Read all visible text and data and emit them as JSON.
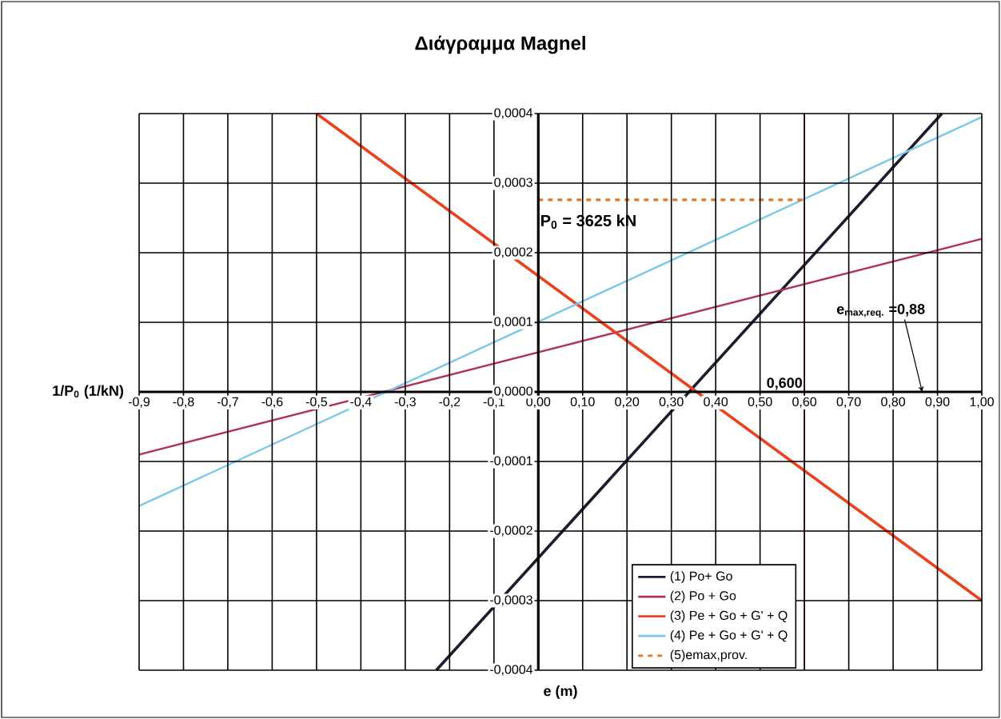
{
  "chart_data": {
    "type": "line",
    "title": "Διάγραμμα Magnel",
    "xlabel": "e (m)",
    "ylabel": "1/P$_{0}$ (1/kN)",
    "xlim": [
      -0.9,
      1.0
    ],
    "ylim": [
      -0.0004,
      0.0004
    ],
    "xticks": [
      {
        "value": -0.9,
        "label": "-0,9"
      },
      {
        "value": -0.8,
        "label": "-0,8"
      },
      {
        "value": -0.7,
        "label": "-0,7"
      },
      {
        "value": -0.6,
        "label": "-0,6"
      },
      {
        "value": -0.5,
        "label": "-0,5"
      },
      {
        "value": -0.4,
        "label": "-0,4"
      },
      {
        "value": -0.3,
        "label": "-0,3"
      },
      {
        "value": -0.2,
        "label": "-0,2"
      },
      {
        "value": -0.1,
        "label": "-0,1"
      },
      {
        "value": 0,
        "label": "0,00"
      },
      {
        "value": 0.1,
        "label": "0,10"
      },
      {
        "value": 0.2,
        "label": "0,20"
      },
      {
        "value": 0.3,
        "label": "0,30"
      },
      {
        "value": 0.4,
        "label": "0,40"
      },
      {
        "value": 0.5,
        "label": "0,50"
      },
      {
        "value": 0.6,
        "label": "0,60"
      },
      {
        "value": 0.7,
        "label": "0,70"
      },
      {
        "value": 0.8,
        "label": "0,80"
      },
      {
        "value": 0.9,
        "label": "0,90"
      },
      {
        "value": 1.0,
        "label": "1,00"
      }
    ],
    "yticks": [
      {
        "value": -0.0004,
        "label": "-0,0004"
      },
      {
        "value": -0.0003,
        "label": "-0,0003"
      },
      {
        "value": -0.0002,
        "label": "-0,0002"
      },
      {
        "value": -0.0001,
        "label": "-0,0001"
      },
      {
        "value": 0,
        "label": "0,0000"
      },
      {
        "value": 0.0001,
        "label": "0,0001"
      },
      {
        "value": 0.0002,
        "label": "0,0002"
      },
      {
        "value": 0.0003,
        "label": "0,0003"
      },
      {
        "value": 0.0004,
        "label": "0,0004"
      }
    ],
    "grid": true,
    "legend": "bottom right",
    "marker": "none",
    "series": [
      {
        "name": "(1) Po+ Go",
        "color": "#1c1c30",
        "x": [
          -0.23,
          0.91
        ],
        "values": [
          -0.0004,
          0.0004
        ]
      },
      {
        "name": "(2) Po + Go",
        "color": "#b0305a",
        "x": [
          -0.9,
          1.0
        ],
        "values": [
          -9e-05,
          0.00022
        ]
      },
      {
        "name": "(3) Pe + Go + G' + Q",
        "color": "#e8421e",
        "x": [
          -0.5,
          1.0
        ],
        "values": [
          0.0004,
          -0.0003
        ]
      },
      {
        "name": "(4) Pe + Go + G' + Q",
        "color": "#7cc8e8",
        "x": [
          -0.9,
          1.0
        ],
        "values": [
          -0.000164,
          0.000395
        ]
      },
      {
        "name": "(5)emax,prov.",
        "color": "#e07828",
        "line_style": "dashed",
        "x": [
          0,
          0.6
        ],
        "values": [
          0.000276,
          0.000276
        ]
      }
    ],
    "ref_lines": [
      {
        "axis": "x",
        "value": 0.6,
        "label": "0,600",
        "color": "#e03020"
      }
    ],
    "annotations": [
      {
        "text": "P$_{0}$ = 3625 kN",
        "x": 0,
        "y": 0.000276
      },
      "e$_{max,req.}$ =0,88"
    ]
  }
}
